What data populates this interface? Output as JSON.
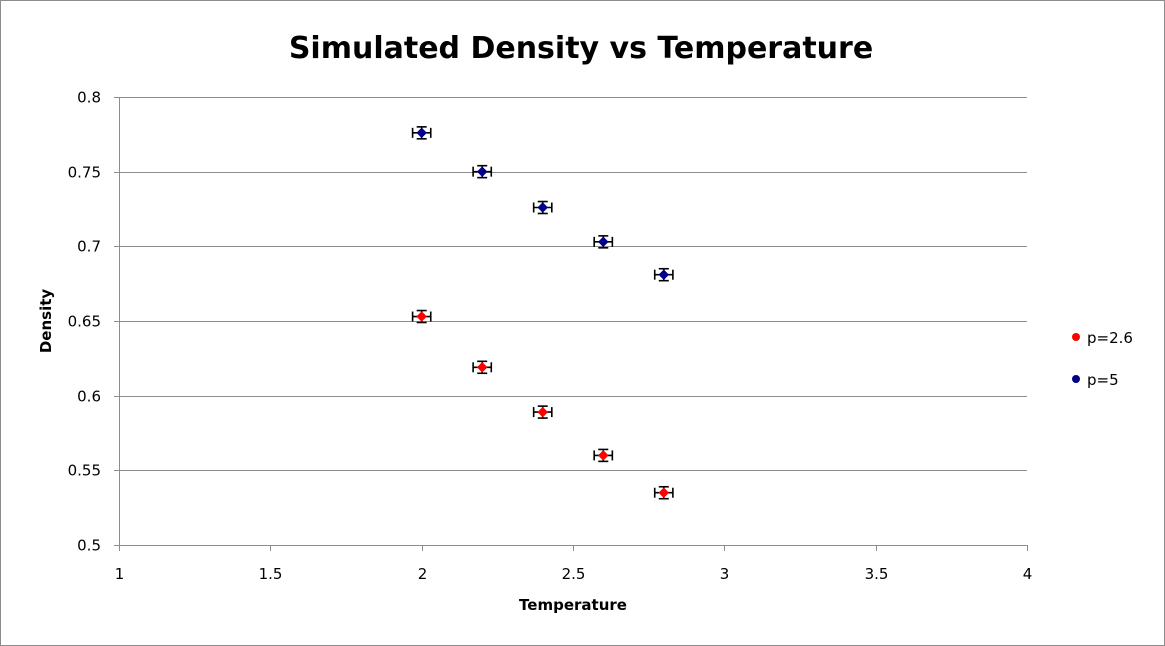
{
  "chart_data": {
    "type": "scatter",
    "title": "Simulated Density vs Temperature",
    "xlabel": "Temperature",
    "ylabel": "Density",
    "xlim": [
      1,
      4
    ],
    "ylim": [
      0.5,
      0.8
    ],
    "xticks": [
      1,
      1.5,
      2,
      2.5,
      3,
      3.5,
      4
    ],
    "yticks": [
      0.5,
      0.55,
      0.6,
      0.65,
      0.7,
      0.75,
      0.8
    ],
    "xtick_labels": [
      "1",
      "1.5",
      "2",
      "2.5",
      "3",
      "3.5",
      "4"
    ],
    "ytick_labels": [
      "0.5",
      "0.55",
      "0.6",
      "0.65",
      "0.7",
      "0.75",
      "0.8"
    ],
    "grid": "horizontal",
    "legend_position": "right",
    "error_bars": {
      "x": 0.03,
      "y": 0.004
    },
    "series": [
      {
        "name": "p=2.6",
        "color": "#ff0000",
        "x": [
          2.0,
          2.2,
          2.4,
          2.6,
          2.8
        ],
        "y": [
          0.653,
          0.619,
          0.589,
          0.56,
          0.535
        ]
      },
      {
        "name": "p=5",
        "color": "#00008b",
        "x": [
          2.0,
          2.2,
          2.4,
          2.6,
          2.8
        ],
        "y": [
          0.776,
          0.75,
          0.726,
          0.703,
          0.681
        ]
      }
    ]
  }
}
